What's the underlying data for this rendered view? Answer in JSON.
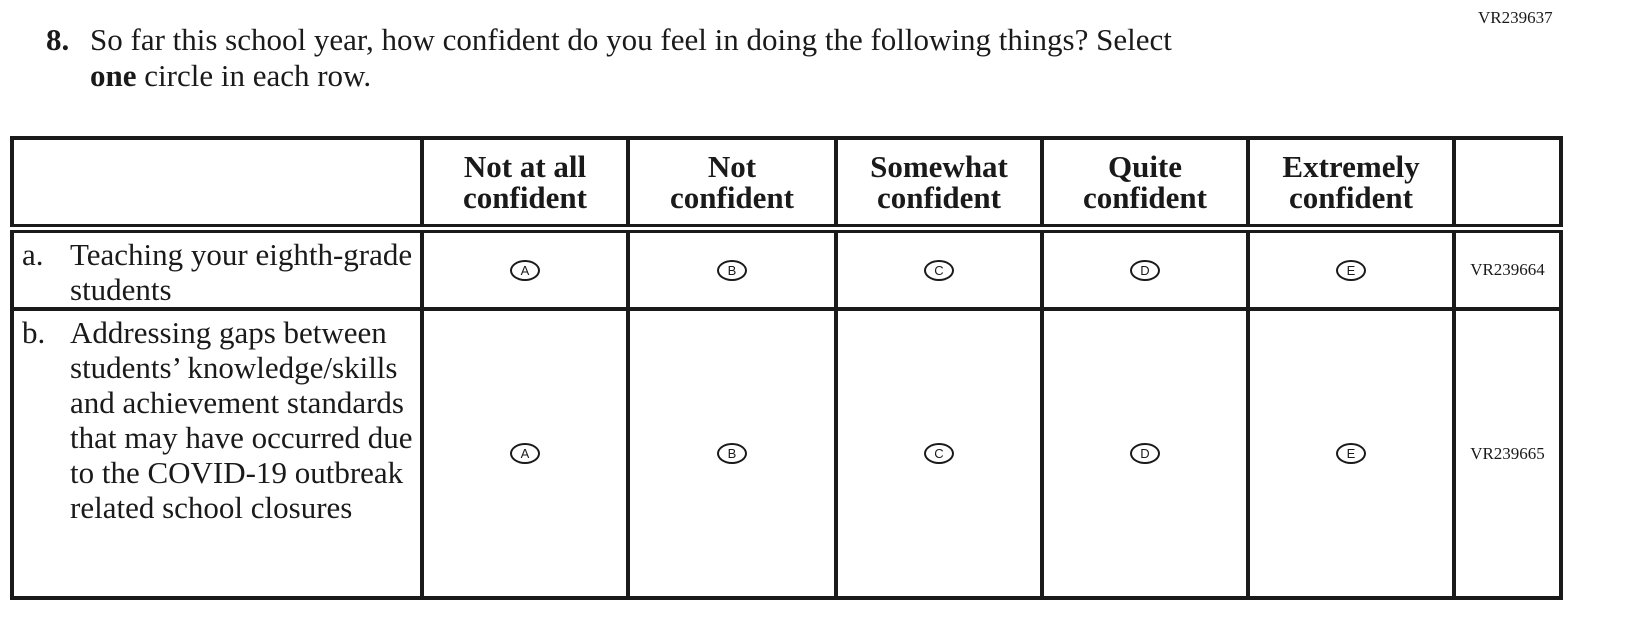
{
  "form_code": "VR239637",
  "question": {
    "number": "8.",
    "line1": "So far this school year, how confident do you feel in doing the following things? Select",
    "line2_bold": "one",
    "line2_rest": " circle in each row."
  },
  "columns": [
    {
      "label": "Not at all confident",
      "bubble": "A"
    },
    {
      "label": "Not confident",
      "bubble": "B"
    },
    {
      "label": "Somewhat confident",
      "bubble": "C"
    },
    {
      "label": "Quite confident",
      "bubble": "D"
    },
    {
      "label": "Extremely confident",
      "bubble": "E"
    }
  ],
  "rows": [
    {
      "letter": "a.",
      "text": "Teaching your eighth-grade students",
      "code": "VR239664"
    },
    {
      "letter": "b.",
      "text": "Addressing gaps between students’ knowledge/skills and achievement standards that may have occurred due to the COVID-19 outbreak related school closures",
      "code": "VR239665"
    }
  ]
}
